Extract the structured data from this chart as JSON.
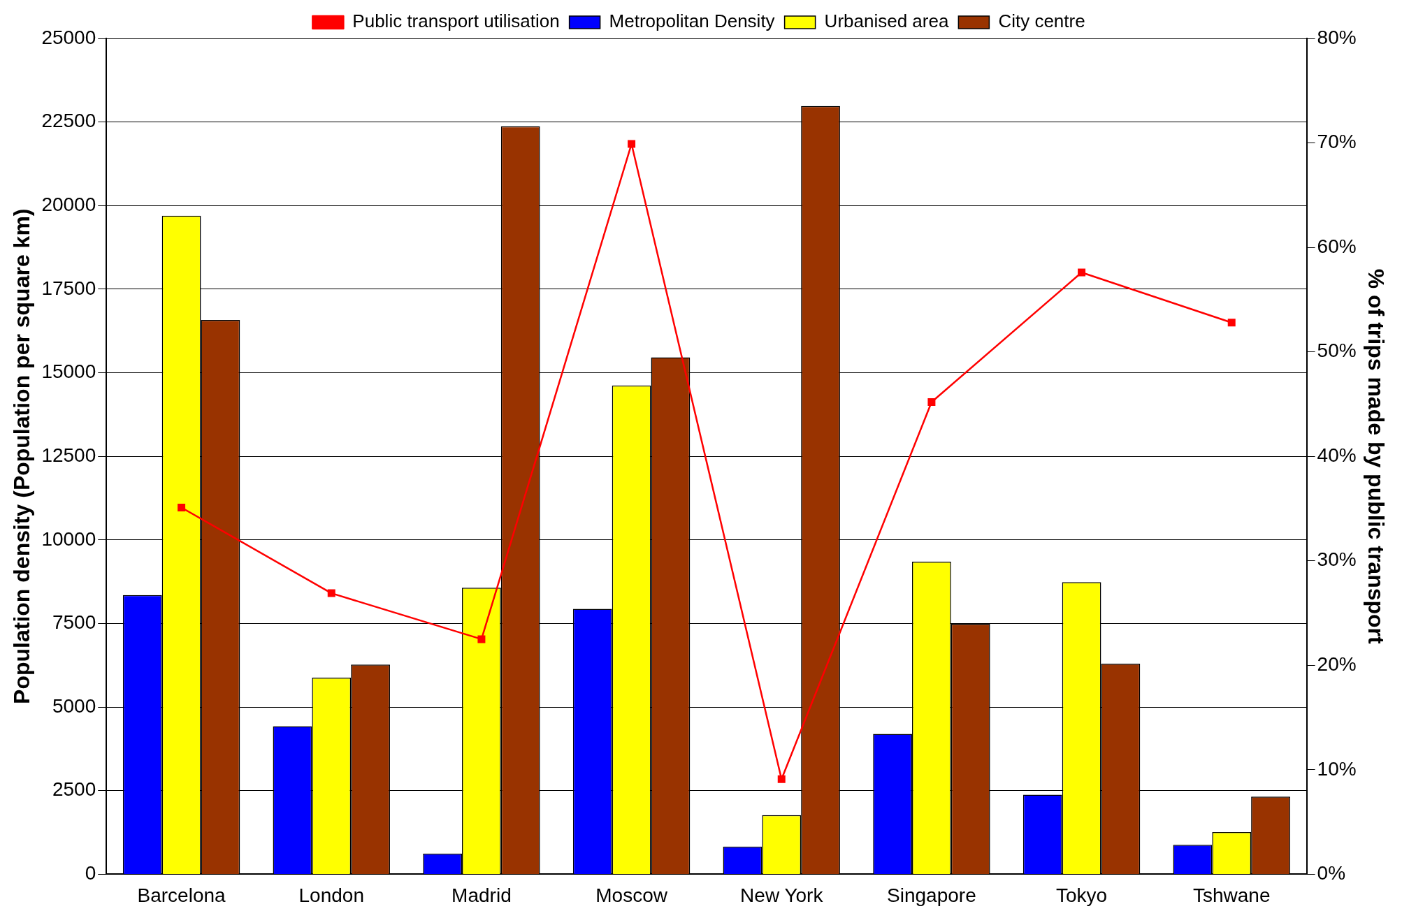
{
  "chart_data": {
    "type": "bar",
    "ylabel": "Population density (Population per square km)",
    "y2label": "% of trips made by public transport",
    "categories": [
      "Barcelona",
      "London",
      "Madrid",
      "Moscow",
      "New York",
      "Singapore",
      "Tokyo",
      "Tshwane"
    ],
    "series": [
      {
        "name": "Metropolitan Density",
        "color": "#0000ff",
        "values": [
          8350,
          4430,
          620,
          7940,
          830,
          4200,
          2380,
          880
        ]
      },
      {
        "name": "Urbanised area",
        "color": "#ffff00",
        "values": [
          19700,
          5880,
          8570,
          14620,
          1770,
          9350,
          8740,
          1260
        ]
      },
      {
        "name": "City centre",
        "color": "#993300",
        "values": [
          16580,
          6270,
          22370,
          15460,
          22980,
          7490,
          6300,
          2320
        ]
      },
      {
        "name": "Public transport utilisation",
        "type": "line",
        "axis": "y2",
        "color": "#ff0000",
        "marker": "square",
        "values": [
          35.1,
          26.9,
          22.5,
          69.9,
          9.1,
          45.2,
          57.6,
          52.8
        ]
      }
    ],
    "ylim": [
      0,
      25000
    ],
    "yticks": [
      0,
      2500,
      5000,
      7500,
      10000,
      12500,
      15000,
      17500,
      20000,
      22500,
      25000
    ],
    "y2lim": [
      0,
      80
    ],
    "y2ticks": [
      {
        "value": 0,
        "label": "0%"
      },
      {
        "value": 10,
        "label": "10%"
      },
      {
        "value": 20,
        "label": "20%"
      },
      {
        "value": 30,
        "label": "30%"
      },
      {
        "value": 40,
        "label": "40%"
      },
      {
        "value": 50,
        "label": "50%"
      },
      {
        "value": 60,
        "label": "60%"
      },
      {
        "value": 70,
        "label": "70%"
      },
      {
        "value": 80,
        "label": "80%"
      }
    ],
    "grid": "y",
    "legend": "top"
  }
}
